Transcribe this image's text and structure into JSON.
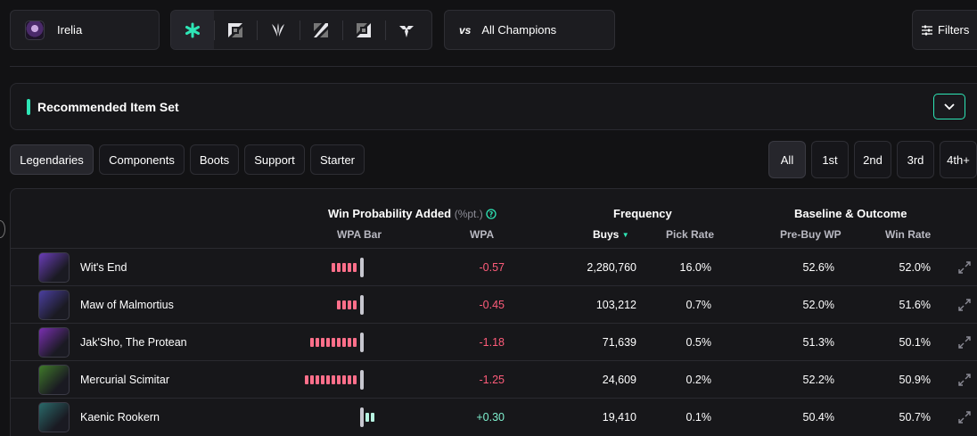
{
  "champion": {
    "name": "Irelia",
    "icon": "irelia-portrait"
  },
  "roles": [
    "all-roles-icon",
    "top-lane-icon",
    "jungle-icon",
    "middle-lane-icon",
    "bottom-lane-icon",
    "support-icon"
  ],
  "matchup": {
    "vs": "vs",
    "label": "All Champions"
  },
  "filters_label": "Filters",
  "recommended_title": "Recommended Item Set",
  "item_tabs": [
    "Legendaries",
    "Components",
    "Boots",
    "Support",
    "Starter"
  ],
  "order_tabs": [
    "All",
    "1st",
    "2nd",
    "3rd",
    "4th+"
  ],
  "headers": {
    "wpa_group": "Win Probability Added",
    "wpa_unit": "(%pt.)",
    "frequency": "Frequency",
    "baseline": "Baseline & Outcome",
    "wpa_bar": "WPA Bar",
    "wpa": "WPA",
    "buys": "Buys",
    "pick_rate": "Pick Rate",
    "prebuy_wp": "Pre-Buy WP",
    "win_rate": "Win Rate"
  },
  "colors": {
    "accent": "#2ee6b6",
    "negative": "#ff5c7a",
    "positive": "#7ff2d0"
  },
  "rows": [
    {
      "name": "Wit's End",
      "wpa": "-0.57",
      "wpa_value": -0.57,
      "buys": "2,280,760",
      "pick_rate": "16.0%",
      "prebuy_wp": "52.6%",
      "win_rate": "52.0%",
      "icon_color": "#6a3db8"
    },
    {
      "name": "Maw of Malmortius",
      "wpa": "-0.45",
      "wpa_value": -0.45,
      "buys": "103,212",
      "pick_rate": "0.7%",
      "prebuy_wp": "52.0%",
      "win_rate": "51.6%",
      "icon_color": "#4b3fa0"
    },
    {
      "name": "Jak'Sho, The Protean",
      "wpa": "-1.18",
      "wpa_value": -1.18,
      "buys": "71,639",
      "pick_rate": "0.5%",
      "prebuy_wp": "51.3%",
      "win_rate": "50.1%",
      "icon_color": "#7a2fb0"
    },
    {
      "name": "Mercurial Scimitar",
      "wpa": "-1.25",
      "wpa_value": -1.25,
      "buys": "24,609",
      "pick_rate": "0.2%",
      "prebuy_wp": "52.2%",
      "win_rate": "50.9%",
      "icon_color": "#3f7a2a"
    },
    {
      "name": "Kaenic Rookern",
      "wpa": "+0.30",
      "wpa_value": 0.3,
      "buys": "19,410",
      "pick_rate": "0.1%",
      "prebuy_wp": "50.4%",
      "win_rate": "50.7%",
      "icon_color": "#2a6a6a"
    }
  ]
}
